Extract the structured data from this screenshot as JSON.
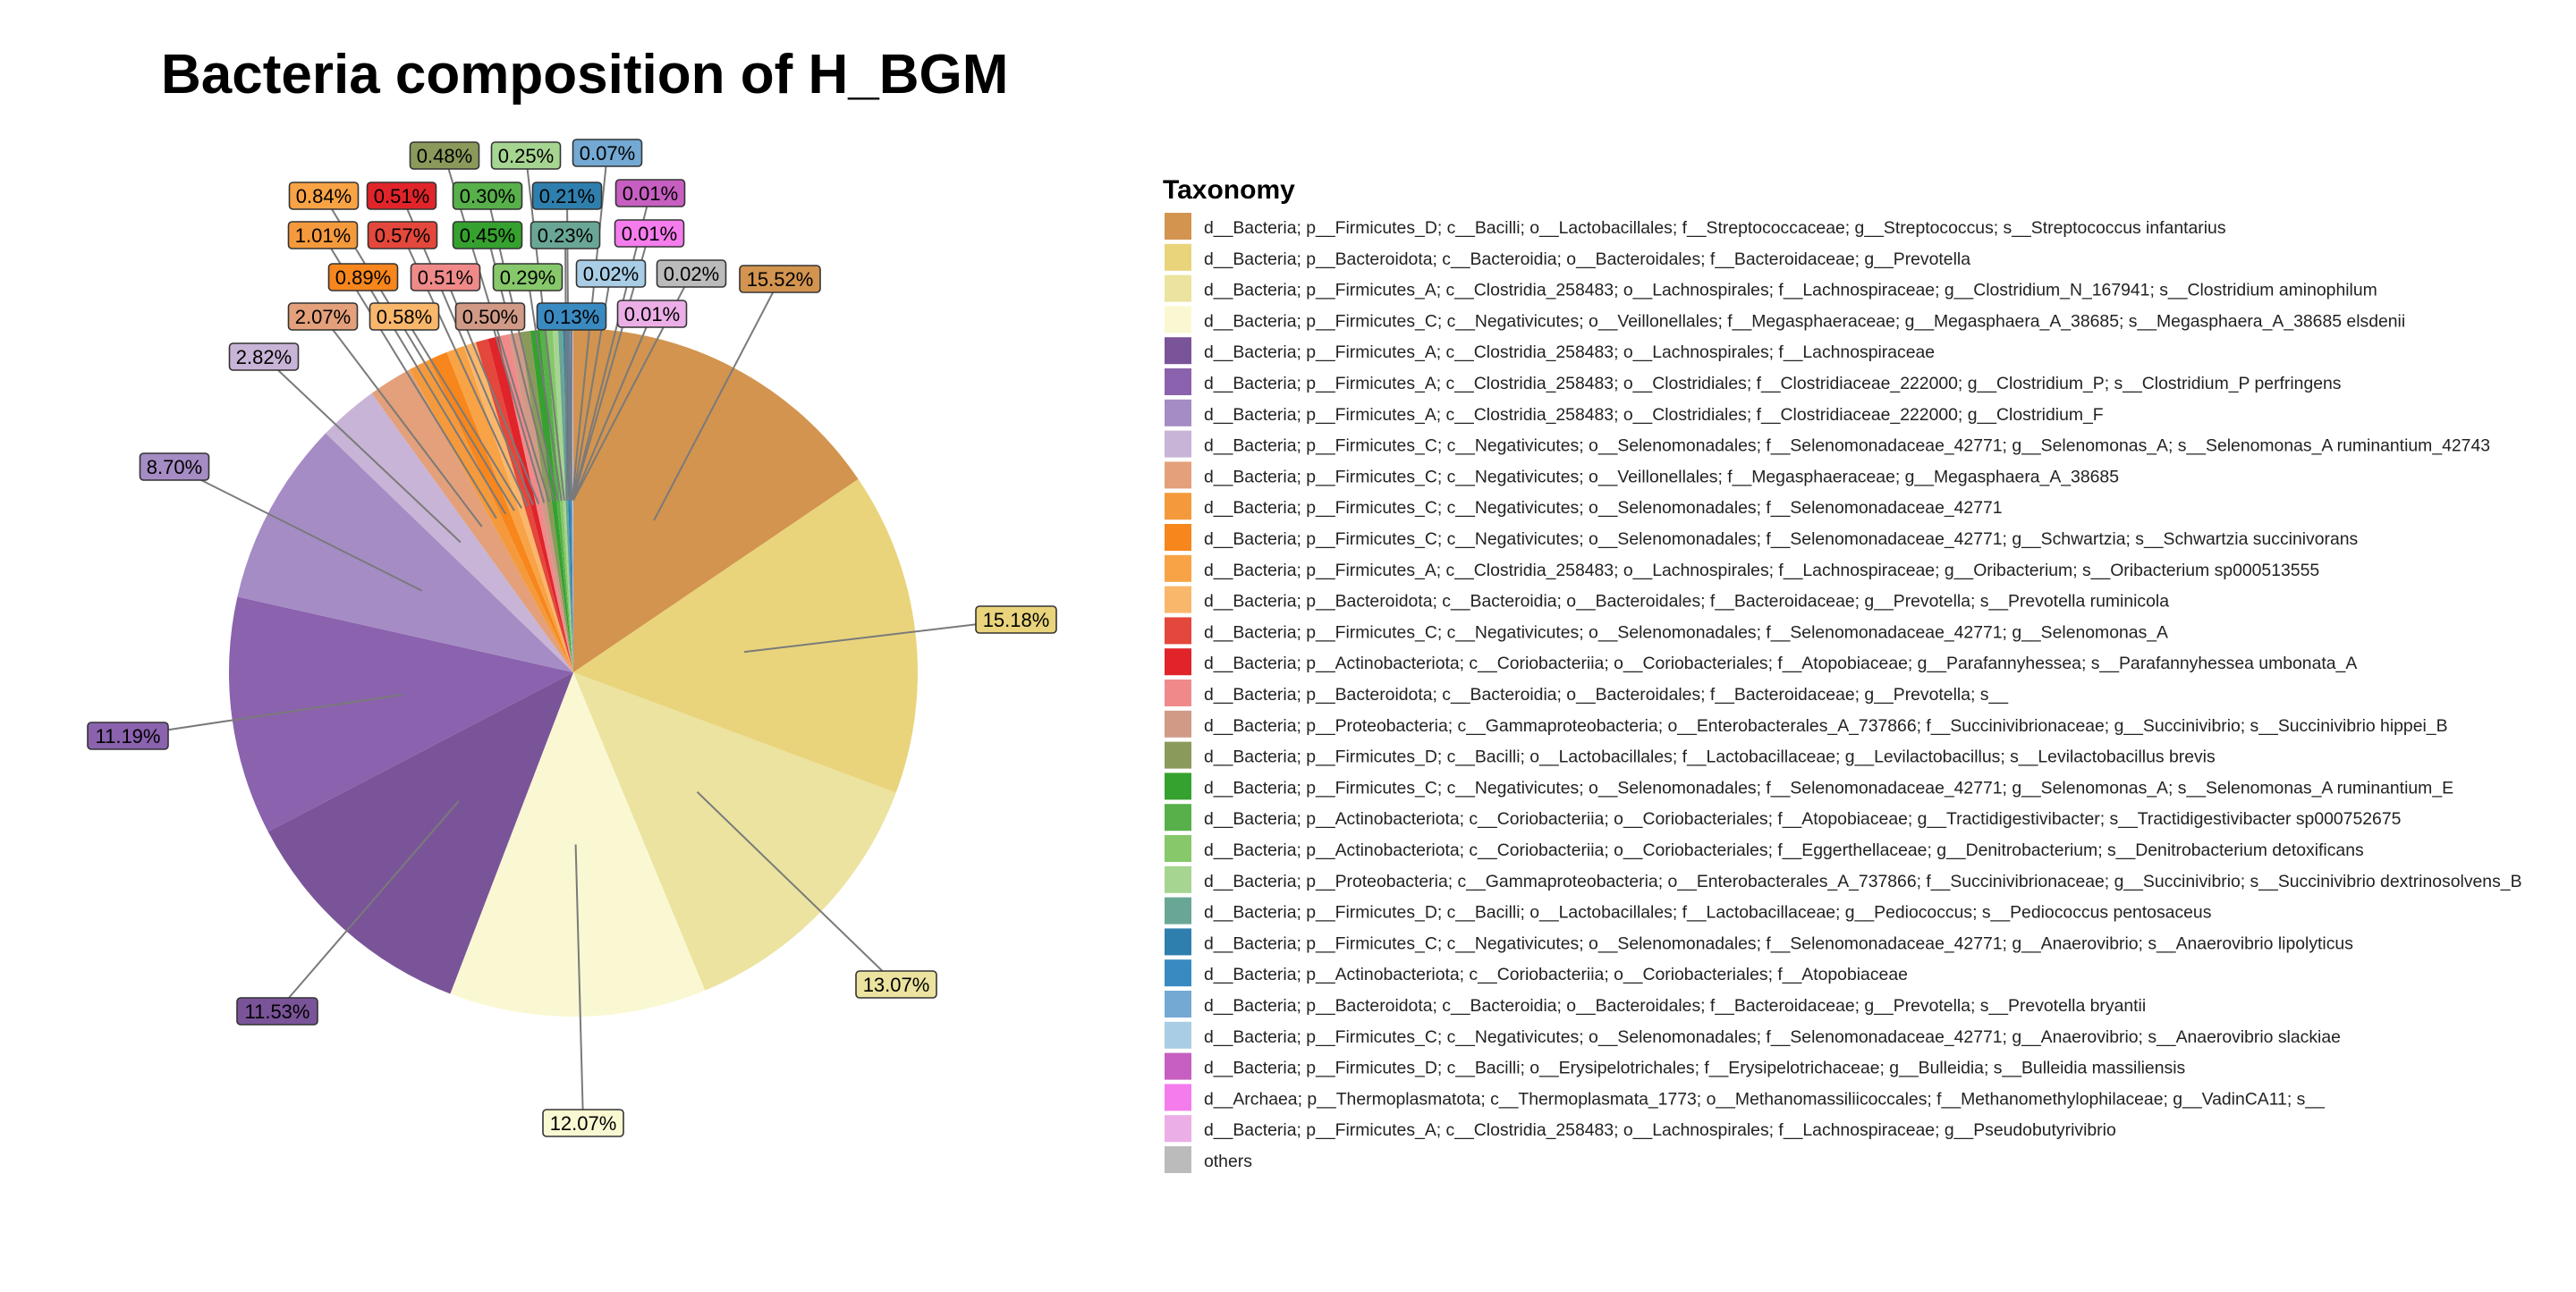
{
  "chart_data": {
    "type": "pie",
    "title": "Bacteria composition of H_BGM",
    "legend_title": "Taxonomy",
    "legend_position": "right",
    "slices": [
      {
        "label": "d__Bacteria; p__Firmicutes_D; c__Bacilli; o__Lactobacillales; f__Streptococcaceae; g__Streptococcus; s__Streptococcus infantarius",
        "value": 15.52,
        "display": "15.52%",
        "color": "#D2944F"
      },
      {
        "label": "d__Bacteria; p__Bacteroidota; c__Bacteroidia; o__Bacteroidales; f__Bacteroidaceae; g__Prevotella",
        "value": 15.18,
        "display": "15.18%",
        "color": "#E9D47C"
      },
      {
        "label": "d__Bacteria; p__Firmicutes_A; c__Clostridia_258483; o__Lachnospirales; f__Lachnospiraceae; g__Clostridium_N_167941; s__Clostridium aminophilum",
        "value": 13.07,
        "display": "13.07%",
        "color": "#EBE39F"
      },
      {
        "label": "d__Bacteria; p__Firmicutes_C; c__Negativicutes; o__Veillonellales; f__Megasphaeraceae; g__Megasphaera_A_38685; s__Megasphaera_A_38685 elsdenii",
        "value": 12.07,
        "display": "12.07%",
        "color": "#F9F8D2"
      },
      {
        "label": "d__Bacteria; p__Firmicutes_A; c__Clostridia_258483; o__Lachnospirales; f__Lachnospiraceae",
        "value": 11.53,
        "display": "11.53%",
        "color": "#7A5499"
      },
      {
        "label": "d__Bacteria; p__Firmicutes_A; c__Clostridia_258483; o__Clostridiales; f__Clostridiaceae_222000; g__Clostridium_P; s__Clostridium_P perfringens",
        "value": 11.19,
        "display": "11.19%",
        "color": "#8A62AE"
      },
      {
        "label": "d__Bacteria; p__Firmicutes_A; c__Clostridia_258483; o__Clostridiales; f__Clostridiaceae_222000; g__Clostridium_F",
        "value": 8.7,
        "display": "8.70%",
        "color": "#A68CC4"
      },
      {
        "label": "d__Bacteria; p__Firmicutes_C; c__Negativicutes; o__Selenomonadales; f__Selenomonadaceae_42771; g__Selenomonas_A; s__Selenomonas_A ruminantium_42743",
        "value": 2.82,
        "display": "2.82%",
        "color": "#C8B4D6"
      },
      {
        "label": "d__Bacteria; p__Firmicutes_C; c__Negativicutes; o__Veillonellales; f__Megasphaeraceae; g__Megasphaera_A_38685",
        "value": 2.07,
        "display": "2.07%",
        "color": "#E3A07A"
      },
      {
        "label": "d__Bacteria; p__Firmicutes_C; c__Negativicutes; o__Selenomonadales; f__Selenomonadaceae_42771",
        "value": 1.01,
        "display": "1.01%",
        "color": "#F59A3C"
      },
      {
        "label": "d__Bacteria; p__Firmicutes_C; c__Negativicutes; o__Selenomonadales; f__Selenomonadaceae_42771; g__Schwartzia; s__Schwartzia succinivorans",
        "value": 0.89,
        "display": "0.89%",
        "color": "#F7861C"
      },
      {
        "label": "d__Bacteria; p__Firmicutes_A; c__Clostridia_258483; o__Lachnospirales; f__Lachnospiraceae; g__Oribacterium; s__Oribacterium sp000513555",
        "value": 0.84,
        "display": "0.84%",
        "color": "#F8A346"
      },
      {
        "label": "d__Bacteria; p__Bacteroidota; c__Bacteroidia; o__Bacteroidales; f__Bacteroidaceae; g__Prevotella; s__Prevotella ruminicola",
        "value": 0.58,
        "display": "0.58%",
        "color": "#F9B76C"
      },
      {
        "label": "d__Bacteria; p__Firmicutes_C; c__Negativicutes; o__Selenomonadales; f__Selenomonadaceae_42771; g__Selenomonas_A",
        "value": 0.57,
        "display": "0.57%",
        "color": "#E4473B"
      },
      {
        "label": "d__Bacteria; p__Actinobacteriota; c__Coriobacteriia; o__Coriobacteriales; f__Atopobiaceae; g__Parafannyhessea; s__Parafannyhessea umbonata_A",
        "value": 0.51,
        "display": "0.51%",
        "color": "#E0242A"
      },
      {
        "label": "d__Bacteria; p__Bacteroidota; c__Bacteroidia; o__Bacteroidales; f__Bacteroidaceae; g__Prevotella; s__",
        "value": 0.51,
        "display": "0.51%",
        "color": "#F08A8A"
      },
      {
        "label": "d__Bacteria; p__Proteobacteria; c__Gammaproteobacteria; o__Enterobacterales_A_737866; f__Succinivibrionaceae; g__Succinivibrio; s__Succinivibrio hippei_B",
        "value": 0.5,
        "display": "0.50%",
        "color": "#D09A86"
      },
      {
        "label": "d__Bacteria; p__Firmicutes_D; c__Bacilli; o__Lactobacillales; f__Lactobacillaceae; g__Levilactobacillus; s__Levilactobacillus brevis",
        "value": 0.48,
        "display": "0.48%",
        "color": "#8A9A5B"
      },
      {
        "label": "d__Bacteria; p__Firmicutes_C; c__Negativicutes; o__Selenomonadales; f__Selenomonadaceae_42771; g__Selenomonas_A; s__Selenomonas_A ruminantium_E",
        "value": 0.45,
        "display": "0.45%",
        "color": "#35A12E"
      },
      {
        "label": "d__Bacteria; p__Actinobacteriota; c__Coriobacteriia; o__Coriobacteriales; f__Atopobiaceae; g__Tractidigestivibacter; s__Tractidigestivibacter sp000752675",
        "value": 0.3,
        "display": "0.30%",
        "color": "#57B04A"
      },
      {
        "label": "d__Bacteria; p__Actinobacteriota; c__Coriobacteriia; o__Coriobacteriales; f__Eggerthellaceae; g__Denitrobacterium; s__Denitrobacterium detoxificans",
        "value": 0.29,
        "display": "0.29%",
        "color": "#86C86A"
      },
      {
        "label": "d__Bacteria; p__Proteobacteria; c__Gammaproteobacteria; o__Enterobacterales_A_737866; f__Succinivibrionaceae; g__Succinivibrio; s__Succinivibrio dextrinosolvens_B",
        "value": 0.25,
        "display": "0.25%",
        "color": "#A6D592"
      },
      {
        "label": "d__Bacteria; p__Firmicutes_D; c__Bacilli; o__Lactobacillales; f__Lactobacillaceae; g__Pediococcus; s__Pediococcus pentosaceus",
        "value": 0.23,
        "display": "0.23%",
        "color": "#69A696"
      },
      {
        "label": "d__Bacteria; p__Firmicutes_C; c__Negativicutes; o__Selenomonadales; f__Selenomonadaceae_42771; g__Anaerovibrio; s__Anaerovibrio lipolyticus",
        "value": 0.21,
        "display": "0.21%",
        "color": "#2F7FAE"
      },
      {
        "label": "d__Bacteria; p__Actinobacteriota; c__Coriobacteriia; o__Coriobacteriales; f__Atopobiaceae",
        "value": 0.13,
        "display": "0.13%",
        "color": "#3A8AC2"
      },
      {
        "label": "d__Bacteria; p__Bacteroidota; c__Bacteroidia; o__Bacteroidales; f__Bacteroidaceae; g__Prevotella; s__Prevotella bryantii",
        "value": 0.07,
        "display": "0.07%",
        "color": "#73A9D3"
      },
      {
        "label": "d__Bacteria; p__Firmicutes_C; c__Negativicutes; o__Selenomonadales; f__Selenomonadaceae_42771; g__Anaerovibrio; s__Anaerovibrio slackiae",
        "value": 0.02,
        "display": "0.02%",
        "color": "#A9CDE5"
      },
      {
        "label": "d__Bacteria; p__Firmicutes_D; c__Bacilli; o__Erysipelotrichales; f__Erysipelotrichaceae; g__Bulleidia; s__Bulleidia massiliensis",
        "value": 0.01,
        "display": "0.01%",
        "color": "#C65FC1"
      },
      {
        "label": "d__Archaea; p__Thermoplasmatota; c__Thermoplasmata_1773; o__Methanomassiliicoccales; f__Methanomethylophilaceae; g__VadinCA11; s__",
        "value": 0.01,
        "display": "0.01%",
        "color": "#F57CED"
      },
      {
        "label": "d__Bacteria; p__Firmicutes_A; c__Clostridia_258483; o__Lachnospirales; f__Lachnospiraceae; g__Pseudobutyrivibrio",
        "value": 0.01,
        "display": "0.01%",
        "color": "#EBAEE6"
      },
      {
        "label": "others",
        "value": 0.02,
        "display": "0.02%",
        "color": "#BBBBBB"
      }
    ]
  }
}
